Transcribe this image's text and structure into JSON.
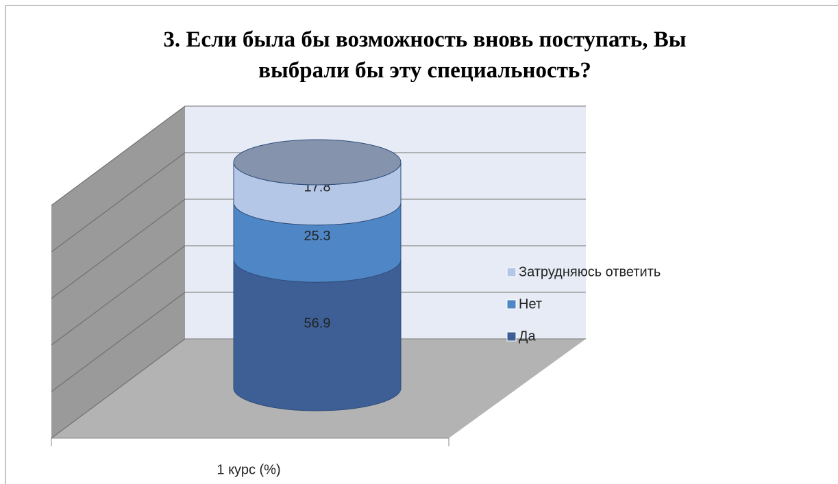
{
  "chart_data": {
    "type": "bar",
    "title": "3. Если была бы возможность вновь поступать, Вы выбрали бы эту специальность?",
    "categories": [
      "1 курс (%)"
    ],
    "series": [
      {
        "name": "Да",
        "color": "#3d5f95",
        "values": [
          56.9
        ]
      },
      {
        "name": "Нет",
        "color": "#4f86c6",
        "values": [
          25.3
        ]
      },
      {
        "name": "Затрудняюсь ответить",
        "color": "#b4c7e7",
        "values": [
          17.8
        ]
      }
    ],
    "ylim": [
      0,
      100
    ],
    "yticks": [
      0,
      20,
      40,
      60,
      80,
      100
    ],
    "grid": true
  }
}
